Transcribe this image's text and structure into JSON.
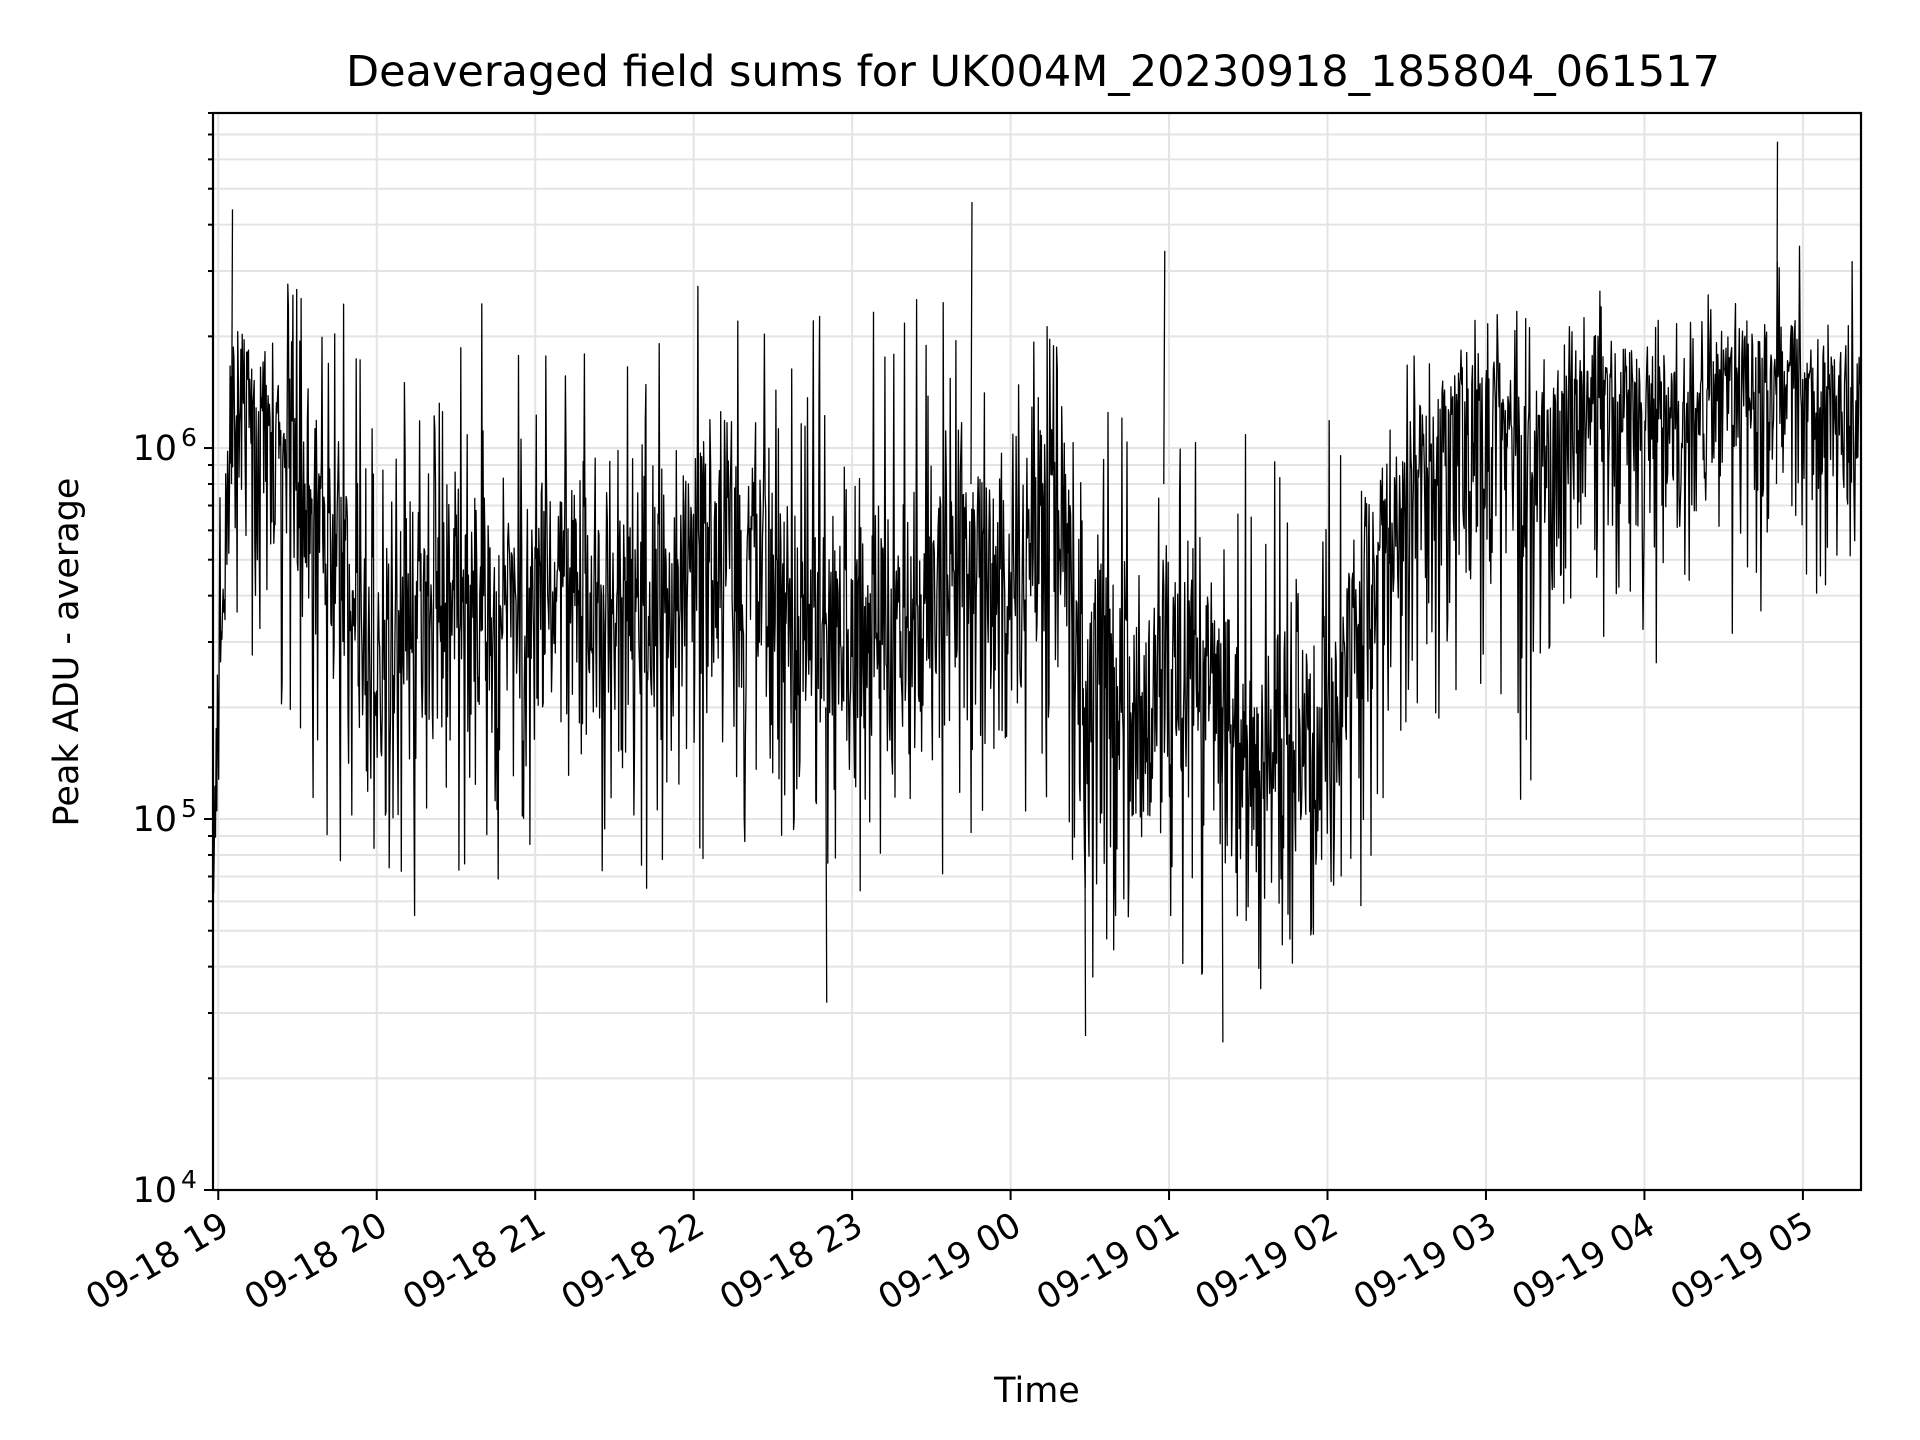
{
  "chart_data": {
    "type": "line",
    "title": "Deaveraged field sums for UK004M_20230918_185804_061517",
    "xlabel": "Time",
    "ylabel": "Peak ADU - average",
    "y_scale": "log",
    "ylim": [
      10000,
      8000000
    ],
    "xlim": [
      "2023-09-18 18:58",
      "2023-09-19 05:22"
    ],
    "x_tick_labels": [
      "09-18 19",
      "09-18 20",
      "09-18 21",
      "09-18 22",
      "09-18 23",
      "09-19 00",
      "09-19 01",
      "09-19 02",
      "09-19 03",
      "09-19 04",
      "09-19 05"
    ],
    "x_tick_values": [
      "2023-09-18 19:00",
      "2023-09-18 20:00",
      "2023-09-18 21:00",
      "2023-09-18 22:00",
      "2023-09-18 23:00",
      "2023-09-19 00:00",
      "2023-09-19 01:00",
      "2023-09-19 02:00",
      "2023-09-19 03:00",
      "2023-09-19 04:00",
      "2023-09-19 05:00"
    ],
    "y_ticks": [
      {
        "value": 10000,
        "base": "10",
        "exp": "4"
      },
      {
        "value": 100000,
        "base": "10",
        "exp": "5"
      },
      {
        "value": 1000000,
        "base": "10",
        "exp": "6"
      }
    ],
    "grid": true,
    "legend": "none",
    "line_color": "#000000",
    "series": [
      {
        "x": [
          "2023-09-18 18:58",
          "2023-09-18 19:05",
          "2023-09-18 19:15",
          "2023-09-18 19:30",
          "2023-09-18 19:45",
          "2023-09-18 20:00",
          "2023-09-18 20:15",
          "2023-09-18 20:30",
          "2023-09-18 20:45",
          "2023-09-18 21:00",
          "2023-09-18 21:15",
          "2023-09-18 21:30",
          "2023-09-18 21:45",
          "2023-09-18 22:00",
          "2023-09-18 22:15",
          "2023-09-18 22:30",
          "2023-09-18 22:45",
          "2023-09-18 23:00",
          "2023-09-18 23:15",
          "2023-09-18 23:30",
          "2023-09-18 23:45",
          "2023-09-19 00:00",
          "2023-09-19 00:15",
          "2023-09-19 00:30",
          "2023-09-19 00:45",
          "2023-09-19 01:00",
          "2023-09-19 01:15",
          "2023-09-19 01:30",
          "2023-09-19 01:45",
          "2023-09-19 02:00",
          "2023-09-19 02:15",
          "2023-09-19 02:30",
          "2023-09-19 02:45",
          "2023-09-19 03:00",
          "2023-09-19 03:15",
          "2023-09-19 03:30",
          "2023-09-19 03:45",
          "2023-09-19 04:00",
          "2023-09-19 04:15",
          "2023-09-19 04:30",
          "2023-09-19 04:45",
          "2023-09-19 05:00",
          "2023-09-19 05:15"
        ],
        "y": [
          60000,
          1500000,
          1300000,
          750000,
          600000,
          280000,
          350000,
          420000,
          380000,
          400000,
          420000,
          350000,
          330000,
          500000,
          600000,
          480000,
          300000,
          380000,
          320000,
          450000,
          550000,
          420000,
          800000,
          250000,
          180000,
          240000,
          200000,
          130000,
          140000,
          140000,
          450000,
          700000,
          1200000,
          1400000,
          1000000,
          1300000,
          1500000,
          1200000,
          1300000,
          1500000,
          1600000,
          1400000,
          1300000
        ],
        "y_low": [
          45000,
          300000,
          250000,
          120000,
          80000,
          45000,
          55000,
          70000,
          65000,
          70000,
          60000,
          55000,
          55000,
          65000,
          80000,
          70000,
          50000,
          55000,
          50000,
          60000,
          70000,
          60000,
          65000,
          32000,
          30000,
          35000,
          30000,
          28000,
          30000,
          30000,
          50000,
          80000,
          150000,
          200000,
          90000,
          200000,
          300000,
          250000,
          250000,
          300000,
          300000,
          300000,
          400000
        ],
        "y_high": [
          300000,
          4200000,
          3300000,
          2800000,
          2600000,
          2500000,
          2200000,
          2400000,
          2700000,
          2300000,
          2400000,
          2400000,
          2200000,
          2800000,
          2800000,
          2600000,
          2500000,
          2300000,
          2600000,
          3000000,
          2500000,
          2400000,
          2600000,
          1600000,
          1300000,
          1500000,
          1300000,
          1200000,
          1100000,
          1200000,
          1500000,
          1800000,
          2100000,
          2300000,
          2400000,
          2900000,
          2900000,
          2700000,
          2900000,
          3000000,
          3300000,
          3600000,
          3500000
        ]
      }
    ],
    "notable_spikes": [
      {
        "x": "2023-09-18 19:05",
        "y": 4400000
      },
      {
        "x": "2023-09-18 23:45",
        "y": 4600000
      },
      {
        "x": "2023-09-19 00:58",
        "y": 3400000
      },
      {
        "x": "2023-09-19 04:50",
        "y": 6700000
      }
    ],
    "notable_dips": [
      {
        "x": "2023-09-18 22:50",
        "y": 32000
      },
      {
        "x": "2023-09-19 00:28",
        "y": 26000
      },
      {
        "x": "2023-09-19 01:20",
        "y": 25000
      }
    ]
  }
}
